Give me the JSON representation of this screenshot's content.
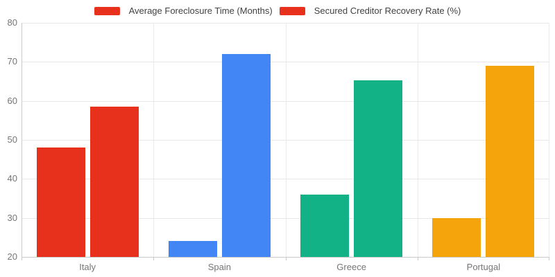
{
  "chart_data": {
    "type": "bar",
    "title": "",
    "categories": [
      "Italy",
      "Spain",
      "Greece",
      "Portugal"
    ],
    "category_colors": [
      "#E8311C",
      "#4285F4",
      "#12B286",
      "#F5A50B"
    ],
    "series": [
      {
        "name": "Average Foreclosure Time (Months)",
        "values": [
          48,
          24,
          36,
          30
        ]
      },
      {
        "name": "Secured Creditor Recovery Rate (%)",
        "values": [
          58.5,
          72,
          65.3,
          69
        ]
      }
    ],
    "ylim": [
      20,
      80
    ],
    "ytick_step": 10,
    "ytick_labels": [
      "20",
      "30",
      "40",
      "50",
      "60",
      "70",
      "80"
    ],
    "grid": true,
    "legend_position": "top",
    "legend_swatch_color": "#E8311C"
  }
}
